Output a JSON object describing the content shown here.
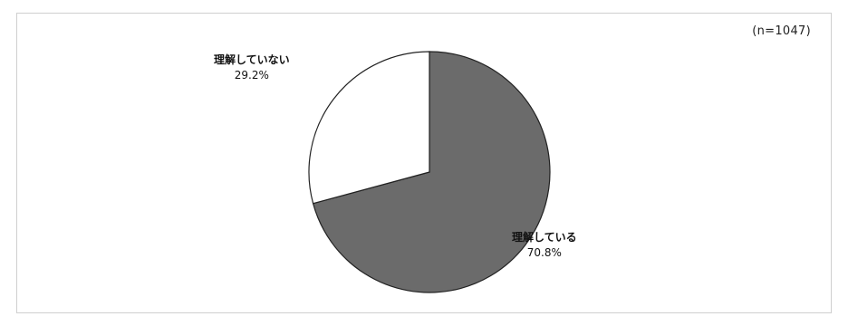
{
  "sample_size_label": "(n=1047)",
  "colors": {
    "understand": "#6b6b6b",
    "not_understand": "#ffffff",
    "outline": "#222222"
  },
  "chart_data": {
    "type": "pie",
    "title": "",
    "slices": [
      {
        "label": "理解している",
        "value": 70.8,
        "value_label": "70.8%",
        "color": "#6b6b6b"
      },
      {
        "label": "理解していない",
        "value": 29.2,
        "value_label": "29.2%",
        "color": "#ffffff"
      }
    ],
    "start": "12 o'clock",
    "direction": "clockwise"
  }
}
